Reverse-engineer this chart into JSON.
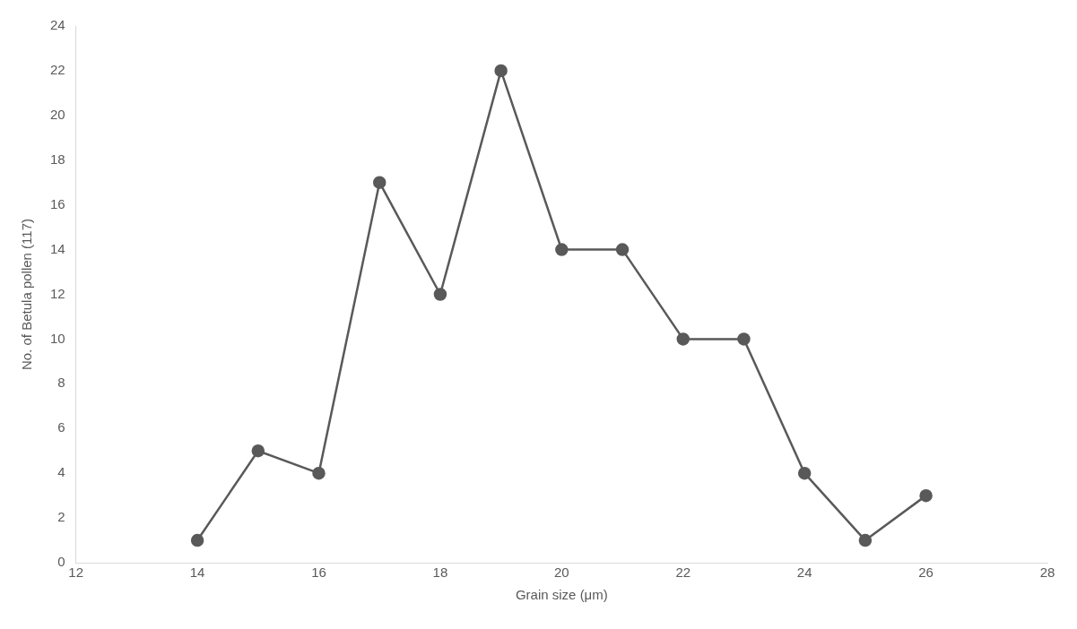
{
  "chart_data": {
    "type": "line",
    "xlabel": "Grain size (μm)",
    "ylabel": "No. of Betula pollen (117)",
    "x": [
      14,
      15,
      16,
      17,
      18,
      19,
      20,
      21,
      22,
      23,
      24,
      25,
      26
    ],
    "series": [
      {
        "color": "#595959",
        "values": [
          1,
          5,
          4,
          17,
          12,
          22,
          14,
          14,
          10,
          10,
          4,
          1,
          3
        ]
      }
    ],
    "xlim": [
      12,
      28
    ],
    "xticks": [
      12,
      14,
      16,
      18,
      20,
      22,
      24,
      26,
      28
    ],
    "ylim": [
      0,
      24
    ],
    "yticks": [
      0,
      2,
      4,
      6,
      8,
      10,
      12,
      14,
      16,
      18,
      20,
      22,
      24
    ],
    "grid": false,
    "legend": false,
    "marker": "circle",
    "line_style": "solid"
  }
}
